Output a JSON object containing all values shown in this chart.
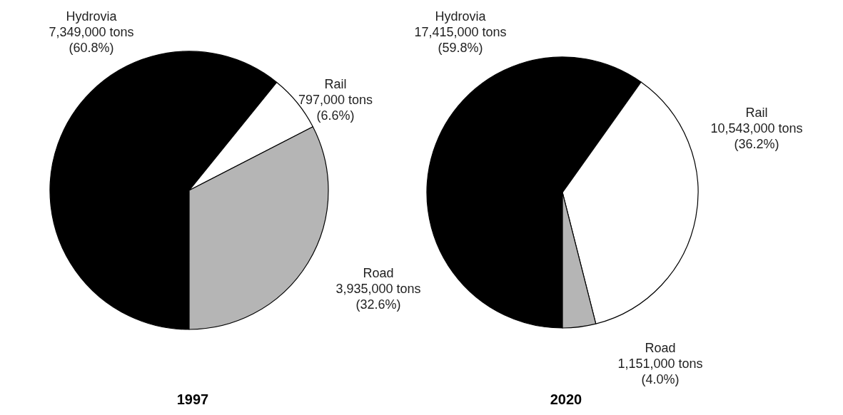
{
  "chart_data": [
    {
      "type": "pie",
      "title": "1997",
      "categories": [
        "Hydrovia",
        "Rail",
        "Road"
      ],
      "values": [
        7349000,
        797000,
        3935000
      ],
      "colors": [
        "#000000",
        "#ffffff",
        "#b5b5b5"
      ],
      "value_labels": [
        "7,349,000 tons\n(60.8%)",
        "797,000 tons\n(6.6%)",
        "3,935,000 tons\n(32.6%)"
      ],
      "legend": false
    },
    {
      "type": "pie",
      "title": "2020",
      "categories": [
        "Hydrovia",
        "Rail",
        "Road"
      ],
      "values": [
        17415000,
        10543000,
        1151000
      ],
      "colors": [
        "#000000",
        "#ffffff",
        "#b5b5b5"
      ],
      "value_labels": [
        "17,415,000 tons\n(59.8%)",
        "10,543,000 tons\n(36.2%)",
        "1,151,000 tons\n(4.0%)"
      ],
      "legend": false
    }
  ]
}
